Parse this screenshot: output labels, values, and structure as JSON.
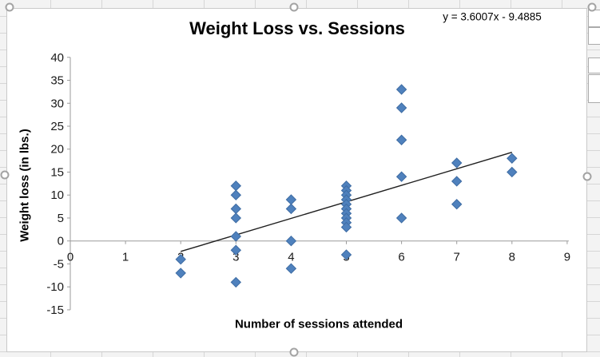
{
  "app": {
    "sheet_background": "#f3f3f3",
    "sheet_gridline_color": "#d6d6d6",
    "chart_border_color": "#c9c9c9",
    "selection_handles": [
      "top-left",
      "top-center",
      "top-right",
      "middle-left",
      "middle-right",
      "bottom-center"
    ]
  },
  "chart_data": {
    "type": "scatter",
    "title": "Weight Loss vs. Sessions",
    "xlabel": "Number of sessions attended",
    "ylabel": "Weight loss (in lbs.)",
    "xlim": [
      0,
      9
    ],
    "ylim": [
      -15,
      40
    ],
    "xticks": [
      0,
      1,
      2,
      3,
      4,
      5,
      6,
      7,
      8,
      9
    ],
    "yticks": [
      -15,
      -10,
      -5,
      0,
      5,
      10,
      15,
      20,
      25,
      30,
      35,
      40
    ],
    "grid": false,
    "legend": false,
    "marker": "diamond",
    "marker_color": "#4f81bd",
    "marker_edge_color": "#3e6ca3",
    "axis_color": "#9b9b9b",
    "tick_label_color": "#1a1a1a",
    "points": [
      [
        2,
        -4
      ],
      [
        2,
        -7
      ],
      [
        3,
        12
      ],
      [
        3,
        10
      ],
      [
        3,
        7
      ],
      [
        3,
        5
      ],
      [
        3,
        1
      ],
      [
        3,
        -2
      ],
      [
        3,
        -9
      ],
      [
        4,
        9
      ],
      [
        4,
        7
      ],
      [
        4,
        0
      ],
      [
        4,
        -6
      ],
      [
        5,
        12
      ],
      [
        5,
        11
      ],
      [
        5,
        10
      ],
      [
        5,
        9
      ],
      [
        5,
        8
      ],
      [
        5,
        7
      ],
      [
        5,
        6
      ],
      [
        5,
        5
      ],
      [
        5,
        4
      ],
      [
        5,
        3
      ],
      [
        5,
        -3
      ],
      [
        6,
        33
      ],
      [
        6,
        29
      ],
      [
        6,
        22
      ],
      [
        6,
        14
      ],
      [
        6,
        5
      ],
      [
        7,
        17
      ],
      [
        7,
        13
      ],
      [
        7,
        8
      ],
      [
        8,
        18
      ],
      [
        8,
        15
      ]
    ],
    "trendline": {
      "label": "y = 3.6007x - 9.4885",
      "slope": 3.6007,
      "intercept": -9.4885,
      "x_range": [
        2,
        8
      ],
      "color": "#1f1f1f"
    }
  }
}
